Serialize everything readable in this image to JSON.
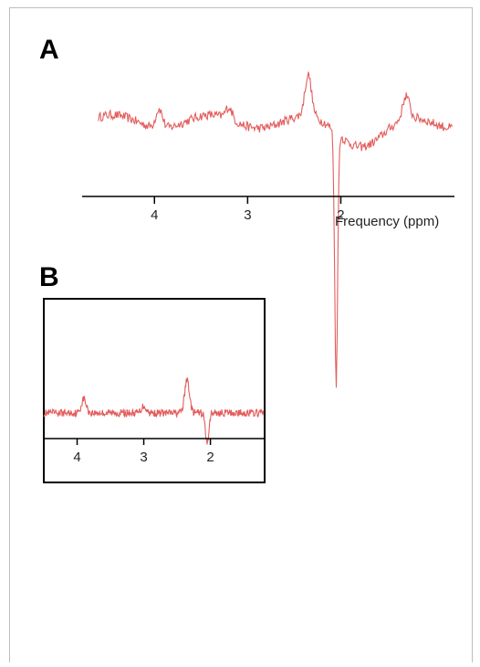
{
  "panels": {
    "a_label": "A",
    "b_label": "B"
  },
  "colors": {
    "trace": "#e35d5d",
    "axis": "#000000"
  },
  "chart_data": [
    {
      "type": "line",
      "panel": "A",
      "xlabel": "Frequency (ppm)",
      "x_reversed": true,
      "xlim": [
        4.6,
        0.8
      ],
      "x_ticks": [
        "4",
        "3",
        "2"
      ],
      "x_tick_values": [
        4,
        3,
        2
      ],
      "grid": false,
      "series": [
        {
          "peaks": [
            {
              "ppm": 3.95,
              "amp": 0.35
            },
            {
              "ppm": 3.2,
              "amp": 0.22
            },
            {
              "ppm": 2.35,
              "amp": 0.75
            },
            {
              "ppm": 2.05,
              "amp": -4.6
            },
            {
              "ppm": 1.3,
              "amp": 0.42
            }
          ]
        }
      ]
    },
    {
      "type": "line",
      "panel": "B",
      "x_reversed": true,
      "xlim": [
        4.5,
        1.2
      ],
      "x_ticks": [
        "4",
        "3",
        "2"
      ],
      "x_tick_values": [
        4,
        3,
        2
      ],
      "grid": false,
      "series": [
        {
          "peaks": [
            {
              "ppm": 3.9,
              "amp": 0.3
            },
            {
              "ppm": 3.0,
              "amp": 0.15
            },
            {
              "ppm": 2.35,
              "amp": 0.7
            },
            {
              "ppm": 2.05,
              "amp": -0.65
            }
          ]
        }
      ]
    }
  ]
}
